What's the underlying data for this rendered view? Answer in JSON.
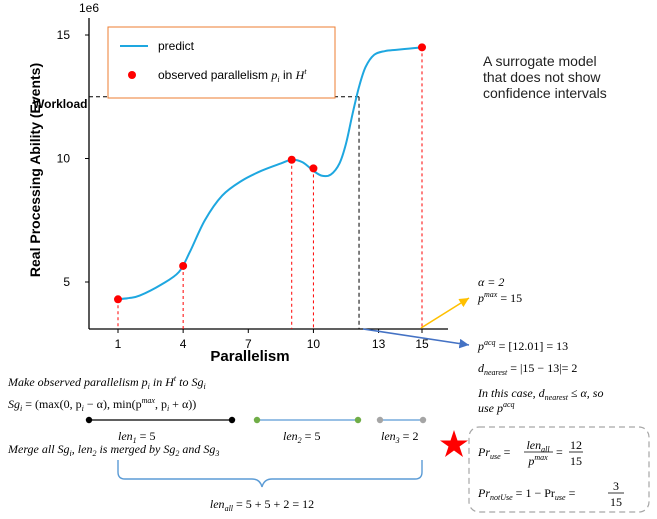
{
  "chart_data": {
    "type": "line",
    "title": "",
    "xlabel": "Parallelism",
    "ylabel": "Real Processing Ability (Events)",
    "y_scale_label": "1e6",
    "x_ticks": [
      1,
      4,
      7,
      10,
      13,
      15
    ],
    "y_ticks": [
      5,
      10,
      15
    ],
    "xlim": [
      0.2,
      16
    ],
    "ylim": [
      3.4,
      16.0
    ],
    "grid": false,
    "legend_position": "top-left",
    "series": [
      {
        "name": "predict",
        "color": "#1ea7e0",
        "x": [
          1,
          1.5,
          2,
          3,
          3.8,
          4.3,
          5,
          5.8,
          6.7,
          7.6,
          8.5,
          9,
          9.5,
          10,
          10.4,
          10.8,
          11.2,
          11.5,
          11.8,
          12.1,
          12.4,
          12.8,
          13.3,
          13.8,
          14.4,
          15
        ],
        "y": [
          4.3,
          4.35,
          4.45,
          4.9,
          5.4,
          6.2,
          7.5,
          8.5,
          9.1,
          9.5,
          9.8,
          9.95,
          9.85,
          9.5,
          9.3,
          9.35,
          9.8,
          10.6,
          11.8,
          12.9,
          13.7,
          14.2,
          14.35,
          14.4,
          14.45,
          14.5
        ]
      },
      {
        "name": "observed parallelism",
        "color": "#ff0000",
        "x": [
          1,
          4,
          9,
          10,
          15
        ],
        "y": [
          4.3,
          5.65,
          9.95,
          9.6,
          14.5
        ]
      }
    ],
    "workload_label": "Workload",
    "workload_value": 12.5,
    "workload_x": 12.1
  },
  "legend": {
    "predict_label": "predict",
    "observed_label_prefix": "observed parallelism ",
    "observed_sym_p": "p",
    "observed_sym_i": "i",
    "observed_in": " in ",
    "observed_sym_H": "H",
    "observed_sym_t": "t"
  },
  "note": {
    "line1": "A surrogate model",
    "line2": "that does not show",
    "line3": "confidence intervals"
  },
  "right_annotations": {
    "alpha": "α = 2",
    "pmax_sym": "p",
    "pmax_sup": "max",
    "pmax_val": " = 15",
    "pacq_sym": "p",
    "pacq_sup": "acq",
    "pacq_val": " =  [12.01] = 13",
    "dnear_sym": "d",
    "dnear_sub": "nearest",
    "dnear_val": " =  |15 − 13|= 2",
    "case_line1": "In this case, d",
    "case_sub": "nearest",
    "case_rest": " ≤ α, so",
    "case_line2": "use p",
    "case_sup": "acq",
    "pruse_lhs": "Pr",
    "pruse_sub": "use",
    "pruse_eq": " = ",
    "pruse_num1": "len",
    "pruse_num1_sub": "all",
    "pruse_den1": "p",
    "pruse_den1_sup": "max",
    "pruse_eq2": " = ",
    "pruse_num2": "12",
    "pruse_den2": "15",
    "prnot_lhs": "Pr",
    "prnot_sub": "notUse",
    "prnot_mid": " = 1 − Pr",
    "prnot_mid_sub": "use",
    "prnot_eq": " = ",
    "prnot_num": "3",
    "prnot_den": "15"
  },
  "bottom_annotations": {
    "line1": "Make observed parallelism p",
    "line1_sub": "i",
    "line1_mid": " in H",
    "line1_sup": "t",
    "line1_end": " to Sg",
    "line1_sub2": "i",
    "line2": "Sg",
    "line2_sub": "i",
    "line2_rest": " = (max(0, p",
    "line2_sub2": "i",
    "line2_rest2": " − α), min(p",
    "line2_sup": "max",
    "line2_rest3": ", p",
    "line2_sub3": "i",
    "line2_rest4": " + α))",
    "len1": "len",
    "len1_sub": "1",
    "len1_val": " = 5",
    "len2": "len",
    "len2_sub": "2",
    "len2_val": " = 5",
    "len3": "len",
    "len3_sub": "3",
    "len3_val": " = 2",
    "merge_line": "Merge all Sg",
    "merge_sub": "i",
    "merge_mid": ", len",
    "merge_sub2": "2",
    "merge_end": " is merged by Sg",
    "merge_sub3": "2",
    "merge_and": " and Sg",
    "merge_sub4": "3",
    "lenall": "len",
    "lenall_sub": "all",
    "lenall_val": " = 5 + 5 + 2 = 12"
  },
  "colors": {
    "curve": "#1ea7e0",
    "points": "#ff0000",
    "legend_border": "#ed7d31",
    "arrow_up": "#ffc000",
    "arrow_down": "#4472c4",
    "brace": "#5b9bd5",
    "seg_black": "#000000",
    "seg_green": "#70ad47",
    "seg_gray": "#a5a5a5",
    "star": "#ff0000",
    "box_border": "#a6a6a6"
  }
}
